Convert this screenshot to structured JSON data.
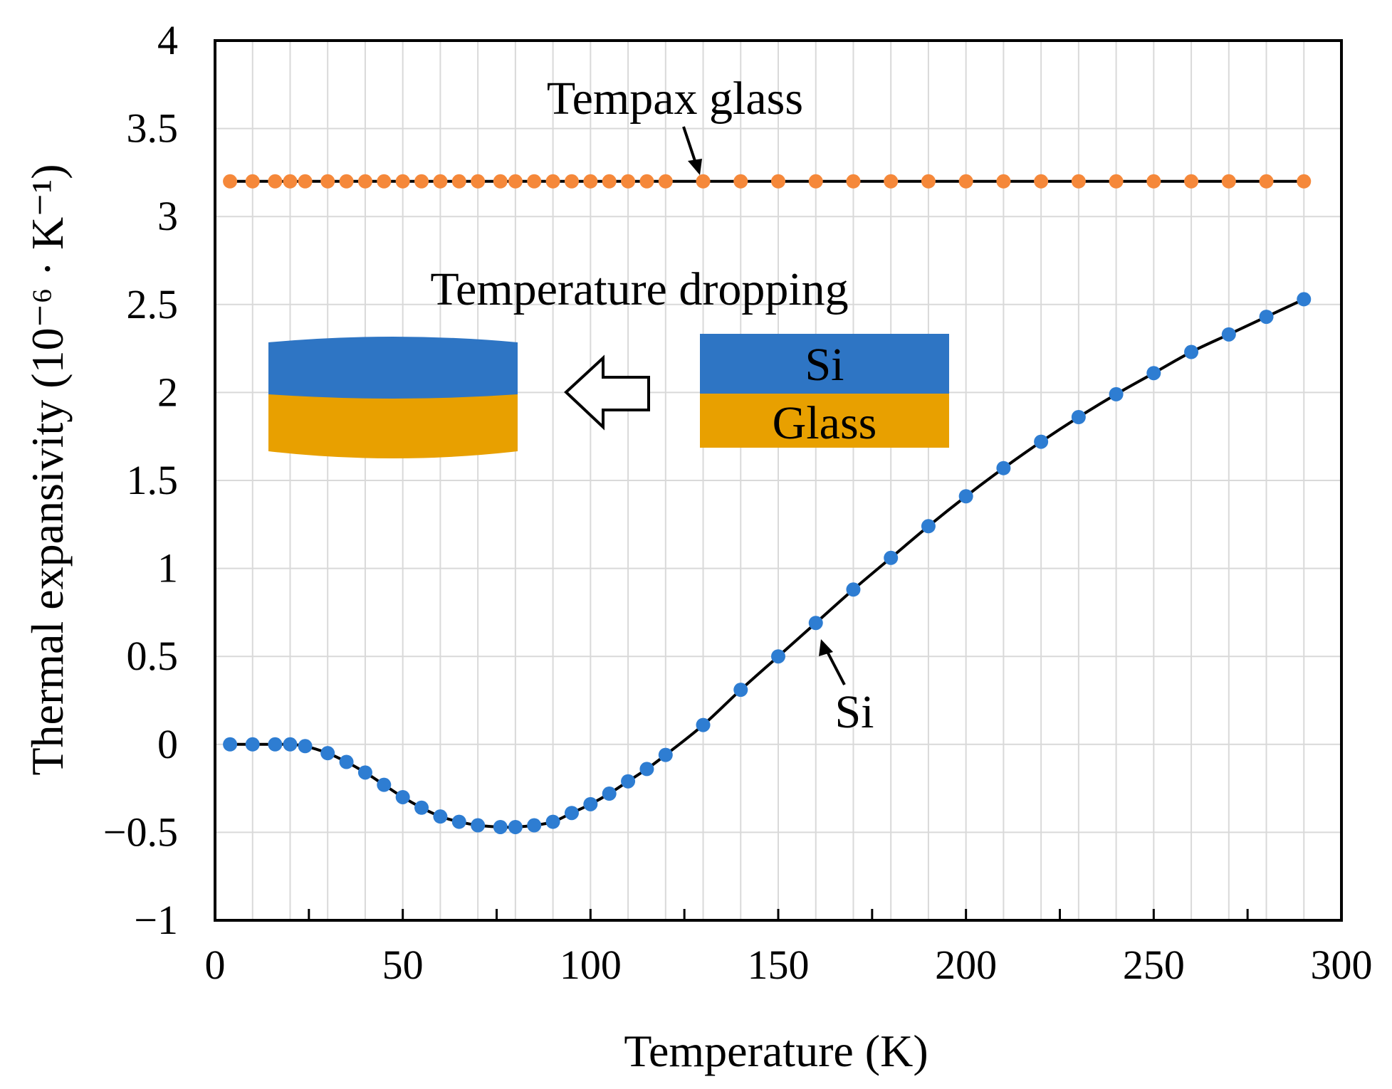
{
  "chart_data": {
    "type": "line",
    "xlabel": "Temperature (K)",
    "ylabel": "Thermal expansivity (10⁻⁶ · K⁻¹)",
    "xlim": [
      0,
      300
    ],
    "ylim": [
      -1,
      4
    ],
    "xticks": [
      0,
      50,
      100,
      150,
      200,
      250,
      300
    ],
    "yticks": [
      -1,
      -0.5,
      0,
      0.5,
      1,
      1.5,
      2,
      2.5,
      3,
      3.5,
      4
    ],
    "xtick_labels": [
      "0",
      "50",
      "100",
      "150",
      "200",
      "250",
      "300"
    ],
    "ytick_labels": [
      "−1",
      "−0.5",
      "0",
      "0.5",
      "1",
      "1.5",
      "2",
      "2.5",
      "3",
      "3.5",
      "4"
    ],
    "grid": true,
    "series": [
      {
        "name": "Tempax glass",
        "color": "#f5883a",
        "x": [
          4,
          10,
          16,
          20,
          24,
          30,
          35,
          40,
          45,
          50,
          55,
          60,
          65,
          70,
          76,
          80,
          85,
          90,
          95,
          100,
          105,
          110,
          115,
          120,
          130,
          140,
          150,
          160,
          170,
          180,
          190,
          200,
          210,
          220,
          230,
          240,
          250,
          260,
          270,
          280,
          290
        ],
        "y": [
          3.2,
          3.2,
          3.2,
          3.2,
          3.2,
          3.2,
          3.2,
          3.2,
          3.2,
          3.2,
          3.2,
          3.2,
          3.2,
          3.2,
          3.2,
          3.2,
          3.2,
          3.2,
          3.2,
          3.2,
          3.2,
          3.2,
          3.2,
          3.2,
          3.2,
          3.2,
          3.2,
          3.2,
          3.2,
          3.2,
          3.2,
          3.2,
          3.2,
          3.2,
          3.2,
          3.2,
          3.2,
          3.2,
          3.2,
          3.2,
          3.2
        ]
      },
      {
        "name": "Si",
        "color": "#2e7dd2",
        "x": [
          4,
          10,
          16,
          20,
          24,
          30,
          35,
          40,
          45,
          50,
          55,
          60,
          65,
          70,
          76,
          80,
          85,
          90,
          95,
          100,
          105,
          110,
          115,
          120,
          130,
          140,
          150,
          160,
          170,
          180,
          190,
          200,
          210,
          220,
          230,
          240,
          250,
          260,
          270,
          280,
          290
        ],
        "y": [
          0,
          0,
          0,
          0,
          -0.01,
          -0.05,
          -0.1,
          -0.16,
          -0.23,
          -0.3,
          -0.36,
          -0.41,
          -0.44,
          -0.46,
          -0.47,
          -0.47,
          -0.46,
          -0.44,
          -0.39,
          -0.34,
          -0.28,
          -0.21,
          -0.14,
          -0.06,
          0.11,
          0.31,
          0.5,
          0.69,
          0.88,
          1.06,
          1.24,
          1.41,
          1.57,
          1.72,
          1.86,
          1.99,
          2.11,
          2.23,
          2.33,
          2.43,
          2.53
        ]
      }
    ],
    "annotations": {
      "tempax_label": "Tempax glass",
      "si_label": "Si",
      "inset_title": "Temperature dropping",
      "inset_top_layer": "Si",
      "inset_bottom_layer": "Glass"
    },
    "colors": {
      "si_layer": "#2e75c4",
      "glass_layer": "#e8a000",
      "line": "#000000"
    }
  }
}
